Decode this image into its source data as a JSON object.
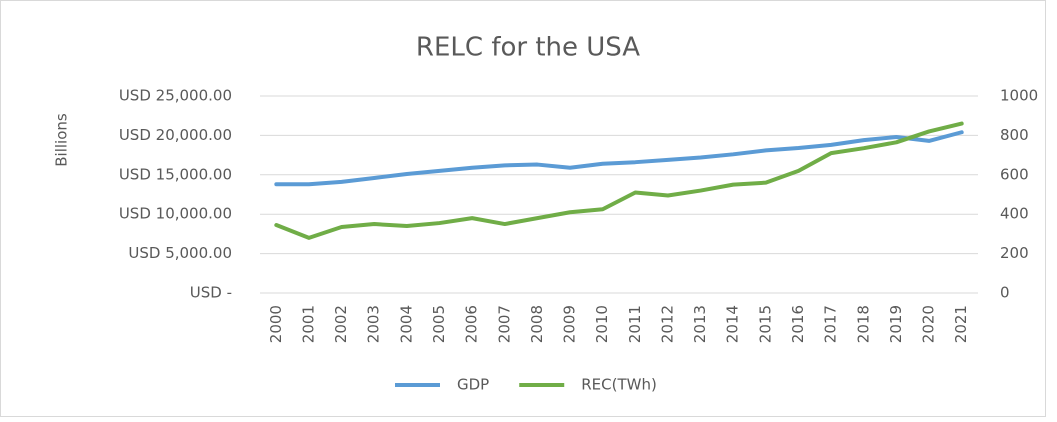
{
  "chart_data": {
    "type": "line",
    "title": "RELC for the USA",
    "ylabel": "Billions",
    "categories": [
      "2000",
      "2001",
      "2002",
      "2003",
      "2004",
      "2005",
      "2006",
      "2007",
      "2008",
      "2009",
      "2010",
      "2011",
      "2012",
      "2013",
      "2014",
      "2015",
      "2016",
      "2017",
      "2018",
      "2019",
      "2020",
      "2021"
    ],
    "series": [
      {
        "name": "GDP",
        "color": "#5b9bd5",
        "values": [
          13800,
          13800,
          14100,
          14600,
          15100,
          15500,
          15900,
          16200,
          16300,
          15900,
          16400,
          16600,
          16900,
          17200,
          17600,
          18100,
          18400,
          18800,
          19400,
          19800,
          19300,
          20400
        ]
      },
      {
        "name": "REC(TWh)",
        "color": "#70ad47",
        "axis": "y2",
        "values": [
          345,
          280,
          335,
          350,
          340,
          355,
          380,
          350,
          380,
          410,
          425,
          510,
          495,
          520,
          550,
          560,
          620,
          710,
          735,
          765,
          820,
          860
        ]
      }
    ],
    "ylim": [
      0,
      25000
    ],
    "yticks": [
      {
        "value": 0,
        "label": "USD -"
      },
      {
        "value": 5000,
        "label": "USD 5,000.00"
      },
      {
        "value": 10000,
        "label": "USD 10,000.00"
      },
      {
        "value": 15000,
        "label": "USD 15,000.00"
      },
      {
        "value": 20000,
        "label": "USD 20,000.00"
      },
      {
        "value": 25000,
        "label": "USD 25,000.00"
      }
    ],
    "y2lim": [
      0,
      1000
    ],
    "y2ticks": [
      0,
      200,
      400,
      600,
      800,
      1000
    ],
    "grid": true,
    "legend": "bottom"
  }
}
